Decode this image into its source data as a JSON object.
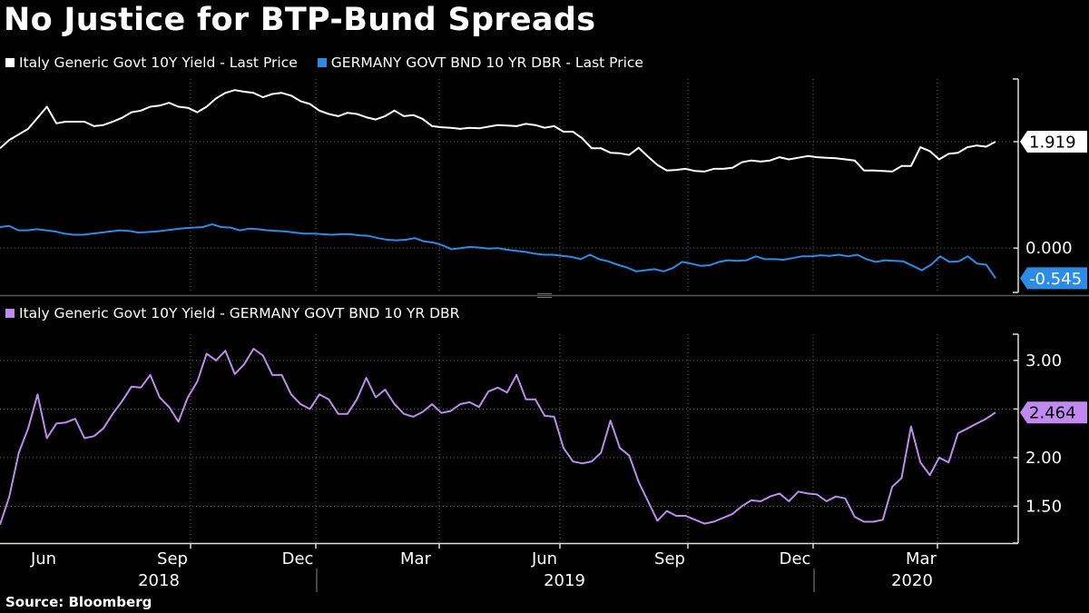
{
  "title": "No Justice for BTP-Bund Spreads",
  "source": "Source: Bloomberg",
  "colors": {
    "italy": "#ffffff",
    "germany": "#2b8ce6",
    "spread": "#c18af0",
    "grid": "#6a6a6a"
  },
  "chart_data": [
    {
      "type": "line",
      "panel": "top",
      "legend": [
        "Italy Generic Govt 10Y Yield - Last Price",
        "GERMANY GOVT BND 10 YR DBR - Last Price"
      ],
      "y_labels": [
        "1.919",
        "0.000"
      ],
      "ylim": [
        -0.8,
        3.05
      ],
      "last_values": [
        "1.919",
        "-0.545"
      ],
      "series": [
        {
          "name": "Italy Generic Govt 10Y Yield - Last Price",
          "values": [
            1.8,
            1.95,
            2.05,
            2.15,
            2.35,
            2.55,
            2.25,
            2.28,
            2.28,
            2.28,
            2.2,
            2.22,
            2.28,
            2.35,
            2.45,
            2.48,
            2.55,
            2.57,
            2.62,
            2.55,
            2.53,
            2.45,
            2.55,
            2.7,
            2.8,
            2.85,
            2.82,
            2.8,
            2.72,
            2.78,
            2.8,
            2.75,
            2.65,
            2.6,
            2.48,
            2.42,
            2.38,
            2.44,
            2.42,
            2.36,
            2.32,
            2.38,
            2.48,
            2.38,
            2.4,
            2.33,
            2.2,
            2.18,
            2.17,
            2.15,
            2.17,
            2.16,
            2.19,
            2.22,
            2.21,
            2.2,
            2.24,
            2.22,
            2.17,
            2.2,
            2.1,
            2.1,
            1.98,
            1.8,
            1.8,
            1.72,
            1.71,
            1.68,
            1.81,
            1.65,
            1.5,
            1.4,
            1.41,
            1.43,
            1.39,
            1.38,
            1.43,
            1.43,
            1.45,
            1.55,
            1.58,
            1.56,
            1.58,
            1.64,
            1.6,
            1.63,
            1.66,
            1.64,
            1.63,
            1.62,
            1.6,
            1.58,
            1.4,
            1.4,
            1.39,
            1.38,
            1.48,
            1.48,
            1.82,
            1.75,
            1.6,
            1.7,
            1.72,
            1.82,
            1.85,
            1.83,
            1.919
          ]
        },
        {
          "name": "GERMANY GOVT BND 10 YR DBR - Last Price",
          "values": [
            0.38,
            0.4,
            0.32,
            0.32,
            0.34,
            0.32,
            0.3,
            0.26,
            0.24,
            0.24,
            0.26,
            0.28,
            0.3,
            0.32,
            0.31,
            0.28,
            0.29,
            0.3,
            0.32,
            0.34,
            0.36,
            0.37,
            0.38,
            0.43,
            0.38,
            0.37,
            0.32,
            0.35,
            0.34,
            0.32,
            0.31,
            0.3,
            0.28,
            0.26,
            0.26,
            0.25,
            0.24,
            0.25,
            0.25,
            0.23,
            0.22,
            0.18,
            0.15,
            0.14,
            0.15,
            0.18,
            0.12,
            0.1,
            0.05,
            -0.02,
            0.0,
            0.02,
            0.01,
            -0.01,
            0.0,
            -0.03,
            -0.05,
            -0.07,
            -0.1,
            -0.12,
            -0.12,
            -0.14,
            -0.16,
            -0.2,
            -0.12,
            -0.2,
            -0.24,
            -0.3,
            -0.35,
            -0.42,
            -0.4,
            -0.38,
            -0.42,
            -0.36,
            -0.25,
            -0.28,
            -0.32,
            -0.31,
            -0.25,
            -0.22,
            -0.23,
            -0.22,
            -0.15,
            -0.2,
            -0.2,
            -0.21,
            -0.18,
            -0.15,
            -0.15,
            -0.13,
            -0.14,
            -0.12,
            -0.15,
            -0.12,
            -0.2,
            -0.25,
            -0.22,
            -0.23,
            -0.24,
            -0.32,
            -0.4,
            -0.3,
            -0.15,
            -0.25,
            -0.24,
            -0.15,
            -0.28,
            -0.3,
            -0.545
          ]
        }
      ]
    },
    {
      "type": "line",
      "panel": "bottom",
      "legend": [
        "Italy Generic Govt 10Y Yield - GERMANY GOVT BND 10 YR DBR"
      ],
      "y_ticks": [
        1.5,
        2.0,
        2.5,
        3.0
      ],
      "y_tick_labels": [
        "1.50",
        "2.00",
        "",
        "3.00"
      ],
      "ylim": [
        1.12,
        3.27
      ],
      "last_value": "2.464",
      "series": [
        {
          "name": "Italy Generic Govt 10Y Yield - GERMANY GOVT BND 10 YR DBR",
          "values": [
            1.31,
            1.6,
            2.05,
            2.3,
            2.65,
            2.2,
            2.35,
            2.36,
            2.4,
            2.2,
            2.22,
            2.3,
            2.45,
            2.58,
            2.73,
            2.72,
            2.85,
            2.62,
            2.52,
            2.37,
            2.62,
            2.78,
            3.07,
            3.0,
            3.1,
            2.86,
            2.96,
            3.12,
            3.05,
            2.85,
            2.85,
            2.65,
            2.55,
            2.5,
            2.65,
            2.6,
            2.45,
            2.45,
            2.6,
            2.82,
            2.62,
            2.7,
            2.55,
            2.45,
            2.42,
            2.47,
            2.55,
            2.46,
            2.48,
            2.55,
            2.57,
            2.52,
            2.68,
            2.72,
            2.67,
            2.85,
            2.6,
            2.6,
            2.43,
            2.42,
            2.1,
            1.96,
            1.94,
            1.96,
            2.05,
            2.38,
            2.1,
            2.02,
            1.75,
            1.55,
            1.35,
            1.45,
            1.4,
            1.4,
            1.36,
            1.32,
            1.34,
            1.38,
            1.42,
            1.5,
            1.56,
            1.55,
            1.6,
            1.63,
            1.55,
            1.65,
            1.63,
            1.62,
            1.55,
            1.6,
            1.58,
            1.39,
            1.34,
            1.34,
            1.36,
            1.7,
            1.79,
            2.32,
            1.95,
            1.82,
            2.0,
            1.95,
            2.25,
            2.3,
            2.35,
            2.4,
            2.464
          ]
        }
      ]
    }
  ],
  "x_axis": {
    "months": [
      "Jun",
      "Sep",
      "Dec",
      "Mar",
      "Jun",
      "Sep",
      "Dec",
      "Mar"
    ],
    "years": [
      "2018",
      "2019",
      "2020"
    ]
  }
}
